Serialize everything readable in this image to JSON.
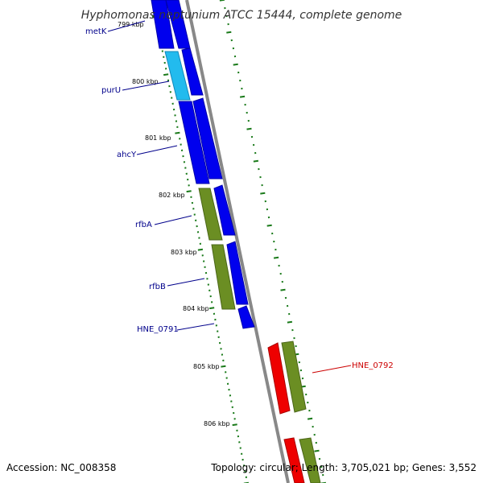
{
  "title": "Hyphomonas neptunium ATCC 15444, complete genome",
  "accession": "Accession: NC_008358",
  "summary": "Topology: circular; Length: 3,705,021 bp; Genes: 3,552",
  "colors": {
    "backbone": "#808080",
    "tick": "#1a7a1a",
    "gene_label_blue": "#00008b",
    "gene_label_red": "#cc0000",
    "cds_blue": "#0000ee",
    "cds_cyan": "#22bbee",
    "cds_olive": "#6b8e23",
    "cds_red": "#ee0000"
  },
  "kbp_labels": [
    "799 kbp",
    "800 kbp",
    "801 kbp",
    "802 kbp",
    "803 kbp",
    "804 kbp",
    "805 kbp",
    "806 kbp"
  ],
  "gene_labels": [
    {
      "text": "metK",
      "color": "blue"
    },
    {
      "text": "purU",
      "color": "blue"
    },
    {
      "text": "ahcY",
      "color": "blue"
    },
    {
      "text": "rfbA",
      "color": "blue"
    },
    {
      "text": "rfbB",
      "color": "blue"
    },
    {
      "text": "HNE_0791",
      "color": "blue"
    },
    {
      "text": "HNE_0792",
      "color": "red"
    }
  ]
}
